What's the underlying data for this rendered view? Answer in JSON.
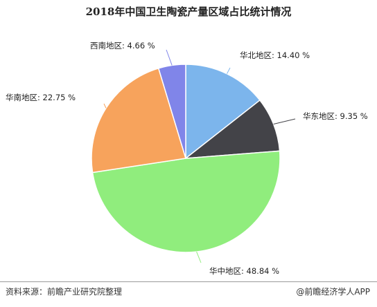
{
  "chart_data": {
    "type": "pie",
    "title": "2018年中国卫生陶瓷产量区域占比统计情况",
    "slices": [
      {
        "name": "华北地区",
        "value": 14.4,
        "label": "华北地区: 14.40 %",
        "color": "#7cb5ec"
      },
      {
        "name": "华东地区",
        "value": 9.35,
        "label": "华东地区: 9.35 %",
        "color": "#434348"
      },
      {
        "name": "华中地区",
        "value": 48.84,
        "label": "华中地区: 48.84 %",
        "color": "#90ed7d"
      },
      {
        "name": "华南地区",
        "value": 22.75,
        "label": "华南地区: 22.75 %",
        "color": "#f7a35c"
      },
      {
        "name": "西南地区",
        "value": 4.66,
        "label": "西南地区: 4.66 %",
        "color": "#8085e9"
      }
    ]
  },
  "footer": {
    "source": "资料来源：前瞻产业研究院整理",
    "brand": "@前瞻经济学人APP"
  }
}
